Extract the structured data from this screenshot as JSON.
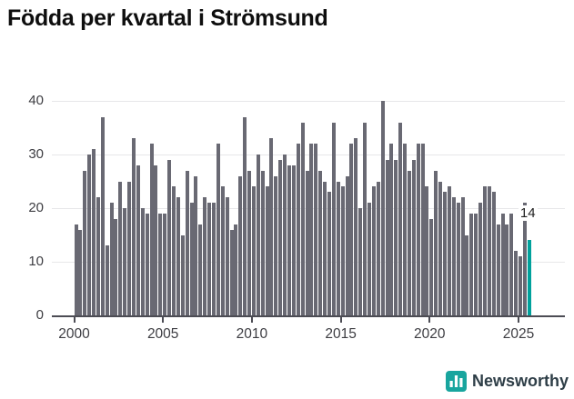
{
  "title": "Födda per kvartal i Strömsund",
  "footer": {
    "brand": "Newsworthy"
  },
  "colors": {
    "bar": "#696973",
    "highlight": "#00a19c",
    "gridline": "#e7e7e9",
    "axis": "#4c4c54",
    "logo_teal": "#18a59e",
    "logo_glyph": "#ffffff"
  },
  "annotation": {
    "text": "14"
  },
  "chart_data": {
    "type": "bar",
    "title": "Födda per kvartal i Strömsund",
    "frequency": "quarterly",
    "start": "2000Q1",
    "end": "2025Q3",
    "values": [
      17,
      16,
      27,
      30,
      31,
      22,
      37,
      13,
      21,
      18,
      25,
      20,
      25,
      33,
      28,
      20,
      19,
      32,
      28,
      19,
      19,
      29,
      24,
      22,
      15,
      27,
      21,
      26,
      17,
      22,
      21,
      21,
      32,
      24,
      22,
      16,
      17,
      26,
      37,
      27,
      24,
      30,
      27,
      24,
      33,
      26,
      29,
      30,
      28,
      28,
      32,
      36,
      27,
      32,
      32,
      27,
      25,
      23,
      36,
      25,
      24,
      26,
      32,
      33,
      20,
      36,
      21,
      24,
      25,
      40,
      29,
      32,
      29,
      36,
      32,
      27,
      29,
      32,
      32,
      24,
      18,
      27,
      25,
      23,
      24,
      22,
      21,
      22,
      15,
      19,
      19,
      21,
      24,
      24,
      23,
      17,
      19,
      17,
      19,
      12,
      11,
      21,
      14
    ],
    "highlight_last_value": 14,
    "y_ticks": [
      0,
      10,
      20,
      30,
      40
    ],
    "x_tick_years": [
      "2000",
      "2005",
      "2010",
      "2015",
      "2020",
      "2025"
    ],
    "ylim": [
      0,
      40
    ],
    "grid": true,
    "legend": "none"
  }
}
